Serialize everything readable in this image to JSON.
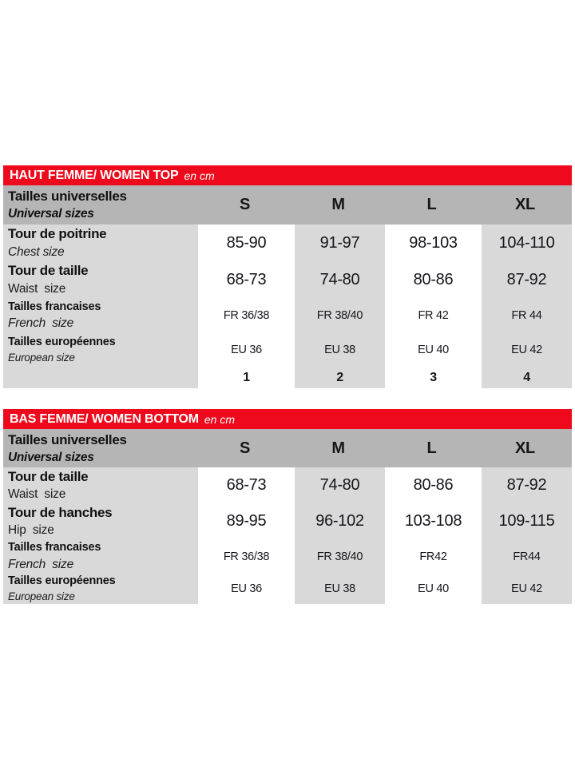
{
  "colors": {
    "accent_red": "#ee0a1c",
    "header_gray": "#b5b5b5",
    "cell_gray": "#d9d9d9",
    "cell_white": "#ffffff",
    "text": "#15151c"
  },
  "tables": [
    {
      "title": "HAUT FEMME/ WOMEN TOP",
      "unit": "en cm",
      "corner": {
        "line1": "Tailles universelles",
        "line2": "Universal sizes"
      },
      "columns": [
        "S",
        "M",
        "L",
        "XL"
      ],
      "rows": [
        {
          "label_fr": "Tour de poitrine",
          "label_en": "Chest size",
          "values": [
            "85-90",
            "91-97",
            "98-103",
            "104-110"
          ]
        },
        {
          "label_fr": "Tour de taille",
          "label_en": "Waist  size",
          "values": [
            "68-73",
            "74-80",
            "80-86",
            "87-92"
          ]
        },
        {
          "label_fr": "Tailles francaises",
          "label_en": "French  size",
          "values": [
            "FR 36/38",
            "FR 38/40",
            "FR 42",
            "FR 44"
          ]
        },
        {
          "label_fr": "Tailles européennes",
          "label_en": "European size",
          "values": [
            "EU 36",
            "EU 38",
            "EU 40",
            "EU 42"
          ]
        },
        {
          "label_fr": "",
          "label_en": "",
          "values": [
            "1",
            "2",
            "3",
            "4"
          ]
        }
      ]
    },
    {
      "title": "BAS FEMME/ WOMEN BOTTOM",
      "unit": "en cm",
      "corner": {
        "line1": "Tailles universelles",
        "line2": "Universal sizes"
      },
      "columns": [
        "S",
        "M",
        "L",
        "XL"
      ],
      "rows": [
        {
          "label_fr": "Tour de taille",
          "label_en": "Waist  size",
          "values": [
            "68-73",
            "74-80",
            "80-86",
            "87-92"
          ]
        },
        {
          "label_fr": "Tour de hanches",
          "label_en": "Hip  size",
          "values": [
            "89-95",
            "96-102",
            "103-108",
            "109-115"
          ]
        },
        {
          "label_fr": "Tailles francaises",
          "label_en": "French  size",
          "values": [
            "FR 36/38",
            "FR 38/40",
            "FR42",
            "FR44"
          ]
        },
        {
          "label_fr": "Tailles européennes",
          "label_en": "European size",
          "values": [
            "EU 36",
            "EU 38",
            "EU 40",
            "EU 42"
          ]
        }
      ]
    }
  ]
}
